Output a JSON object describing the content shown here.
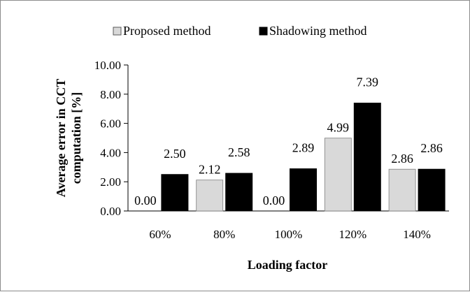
{
  "chart_data": {
    "type": "bar",
    "title": "",
    "xlabel": "Loading factor",
    "ylabel": [
      "Average error in CCT",
      "computation [%]"
    ],
    "categories": [
      "60%",
      "80%",
      "100%",
      "120%",
      "140%"
    ],
    "ylim": [
      0,
      10
    ],
    "yticks": [
      "0.00",
      "2.00",
      "4.00",
      "6.00",
      "8.00",
      "10.00"
    ],
    "grid": false,
    "legend_position": "top",
    "series": [
      {
        "name": "Proposed method",
        "values": [
          0.0,
          2.12,
          0.0,
          4.99,
          2.86
        ],
        "labels": [
          "0.00",
          "2.12",
          "0.00",
          "4.99",
          "2.86"
        ],
        "color": "#d9d9d9"
      },
      {
        "name": "Shadowing method",
        "values": [
          2.5,
          2.58,
          2.89,
          7.39,
          2.86
        ],
        "labels": [
          "2.50",
          "2.58",
          "2.89",
          "7.39",
          "2.86"
        ],
        "color": "#000000"
      }
    ]
  }
}
